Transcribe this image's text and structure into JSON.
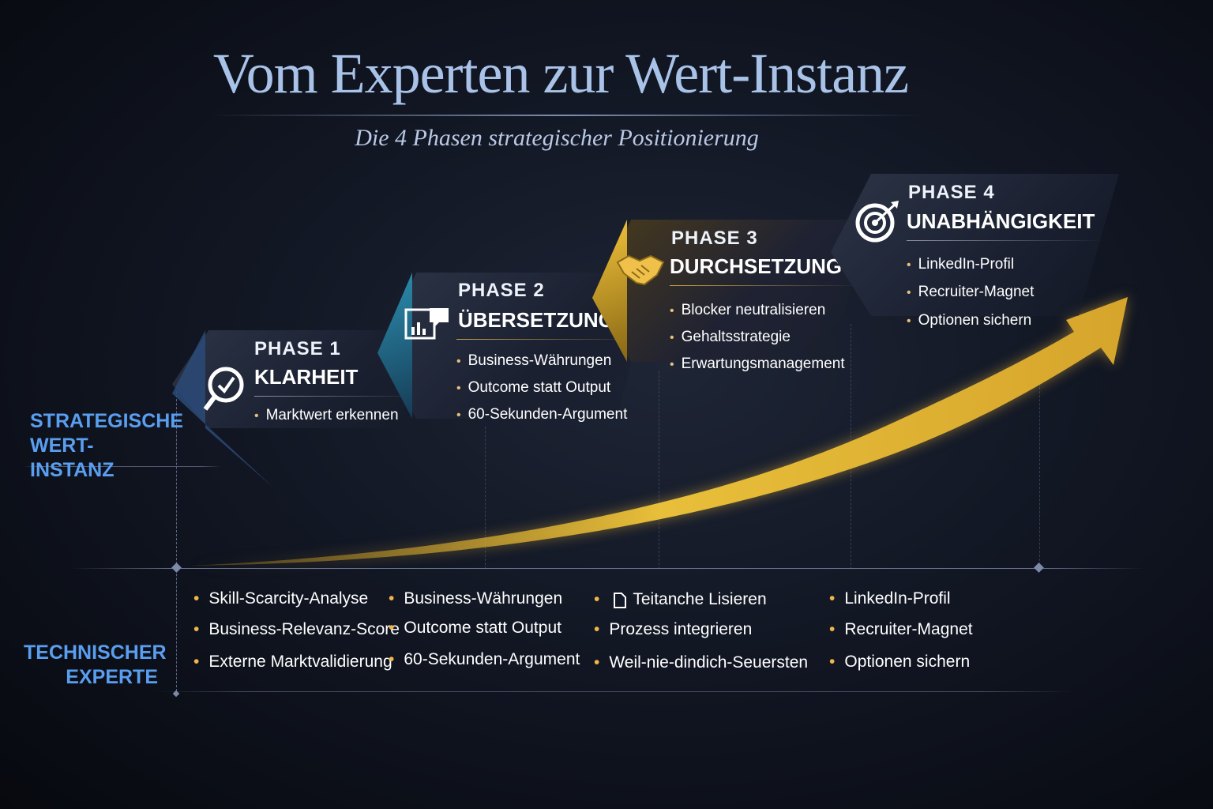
{
  "title": "Vom Experten zur Wert-Instanz",
  "subtitle": "Die 4 Phasen strategischer Positionierung",
  "colors": {
    "gold": "#e2b43a",
    "blue_label": "#5a9ef0",
    "title": "#a9c3e8"
  },
  "axis_labels": {
    "top": "STRATEGISCHE WERT-INSTANZ",
    "bottom": "TECHNISCHER EXPERTE"
  },
  "phases": [
    {
      "label": "PHASE 1",
      "name": "KLARHEIT",
      "icon": "magnifier-check-icon",
      "bullets": [
        "Marktwert erkennen"
      ]
    },
    {
      "label": "PHASE 2",
      "name": "ÜBERSETZUNG",
      "icon": "chart-chat-icon",
      "bullets": [
        "Business-Währungen",
        "Outcome statt Output",
        "60-Sekunden-Argument"
      ]
    },
    {
      "label": "PHASE 3",
      "name": "DURCHSETZUNG",
      "icon": "handshake-icon",
      "bullets": [
        "Blocker neutralisieren",
        "Gehaltsstrategie",
        "Erwartungsmanagement"
      ]
    },
    {
      "label": "PHASE 4",
      "name": "UNABHÄNGIGKEIT",
      "icon": "target-icon",
      "bullets": [
        "LinkedIn-Profil",
        "Recruiter-Magnet",
        "Optionen sichern"
      ]
    }
  ],
  "bottom_columns": [
    [
      "Skill-Scarcity-Analyse",
      "Business-Relevanz-Score",
      "Externe Marktvalidierung"
    ],
    [
      "Business-Währungen",
      "Outcome statt Output",
      "60-Sekunden-Argument"
    ],
    [
      "Teitanche Lisieren",
      "Prozess integrieren",
      "Weil-nie-dindich-Seuersten"
    ],
    [
      "LinkedIn-Profil",
      "Recruiter-Magnet",
      "Optionen sichern"
    ]
  ]
}
